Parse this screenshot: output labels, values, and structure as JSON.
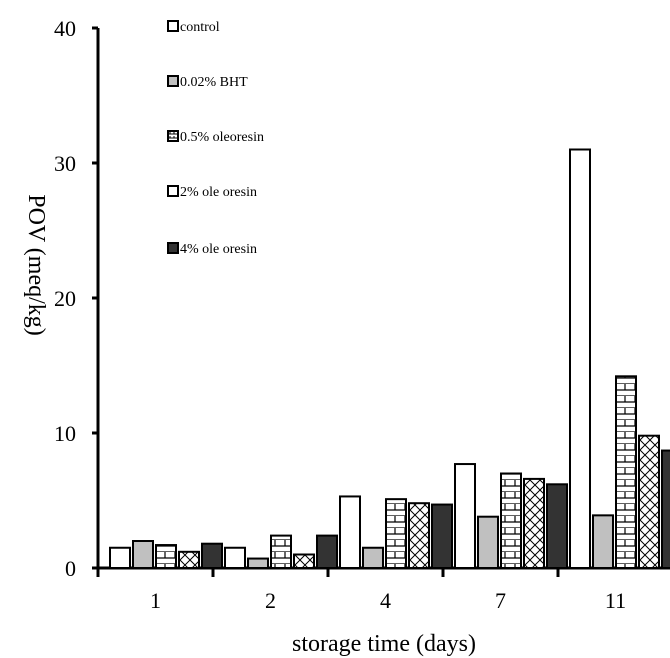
{
  "chart_data": {
    "type": "bar",
    "title": "",
    "xlabel": "storage time (days)",
    "ylabel": "POV (meq/kg)",
    "categories": [
      "1",
      "2",
      "4",
      "7",
      "11"
    ],
    "ylim": [
      0,
      40
    ],
    "yticks": [
      "0",
      "10",
      "20",
      "30",
      "40"
    ],
    "grid": false,
    "legend_position": "top-left inside",
    "series": [
      {
        "name": "control",
        "values": [
          1.5,
          1.5,
          5.3,
          7.7,
          31.0
        ],
        "pattern": "white"
      },
      {
        "name": "0.02% BHT",
        "values": [
          2.0,
          0.7,
          1.5,
          3.8,
          3.9
        ],
        "pattern": "gray"
      },
      {
        "name": "0.5% oleoresin",
        "values": [
          1.7,
          2.4,
          5.1,
          7.0,
          14.2
        ],
        "pattern": "bricks"
      },
      {
        "name": "2% ole oresin",
        "values": [
          1.2,
          1.0,
          4.8,
          6.6,
          9.8
        ],
        "pattern": "zigzag"
      },
      {
        "name": "4% ole oresin",
        "values": [
          1.8,
          2.4,
          4.7,
          6.2,
          8.7
        ],
        "pattern": "dark"
      }
    ]
  }
}
